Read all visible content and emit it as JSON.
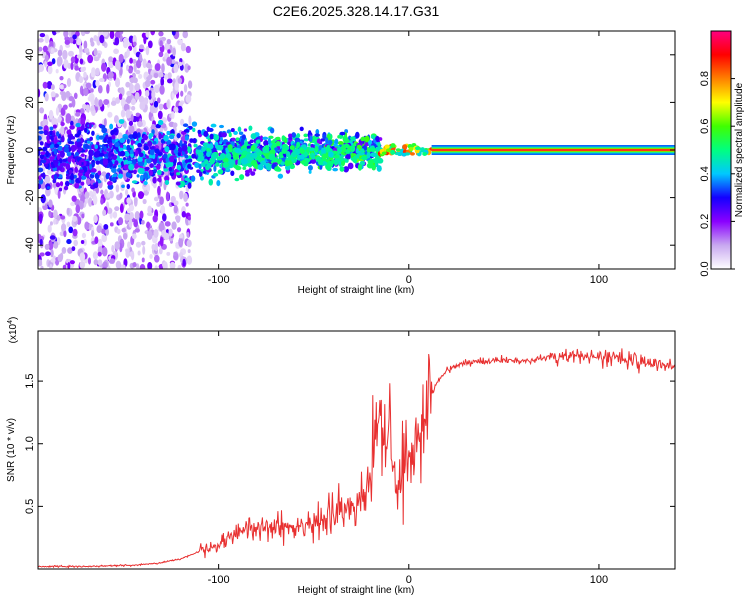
{
  "figure_title": "C2E6.2025.328.14.17.G31",
  "chart_data": [
    {
      "type": "heatmap",
      "title": "C2E6.2025.328.14.17.G31",
      "xlabel": "Height of straight line (km)",
      "ylabel": "Frequency (Hz)",
      "xlim": [
        -195,
        140
      ],
      "ylim": [
        -50,
        50
      ],
      "xticks": [
        -100,
        0,
        100
      ],
      "xtick_labels": [
        "-100",
        "0",
        "100"
      ],
      "yticks": [
        -40,
        -20,
        0,
        20,
        40
      ],
      "ytick_labels": [
        "-40",
        "-20",
        "0",
        "20",
        "40"
      ],
      "colorbar": {
        "label": "Normalized spectral amplitude",
        "range": [
          0,
          1
        ],
        "ticks": [
          0.0,
          0.2,
          0.4,
          0.6,
          0.8
        ],
        "tick_labels": [
          "0.0",
          "0.2",
          "0.4",
          "0.6",
          "0.8"
        ],
        "colors": [
          "#ffffff",
          "#c8a8f0",
          "#8a00ff",
          "#1400ff",
          "#00c8ff",
          "#00ff80",
          "#40ff00",
          "#ffff00",
          "#ff8000",
          "#ff0000",
          "#ff0080"
        ]
      },
      "features": {
        "noise_region_x": [
          -195,
          -115
        ],
        "scatter_band_x": [
          -135,
          -15
        ],
        "transition_x": [
          -15,
          12
        ],
        "steady_tone_x": [
          12,
          140
        ],
        "steady_tone_frequency": 0
      }
    },
    {
      "type": "line",
      "xlabel": "Height of straight line (km)",
      "ylabel": "SNR (10 * v/v)",
      "scale_label": "(x10",
      "scale_exponent": "4",
      "xlim": [
        -195,
        140
      ],
      "ylim": [
        0,
        1.9
      ],
      "xticks": [
        -100,
        0,
        100
      ],
      "xtick_labels": [
        "-100",
        "0",
        "100"
      ],
      "yticks": [
        0.5,
        1.0,
        1.5
      ],
      "ytick_labels": [
        "0.5",
        "1.0",
        "1.5"
      ],
      "line_color": "#e83030",
      "series": [
        {
          "name": "SNR",
          "x": [
            -195,
            -170,
            -145,
            -130,
            -120,
            -110,
            -100,
            -90,
            -80,
            -70,
            -60,
            -50,
            -40,
            -30,
            -25,
            -20,
            -18,
            -15,
            -12,
            -10,
            -8,
            -5,
            -3,
            0,
            3,
            5,
            8,
            10,
            12,
            15,
            20,
            25,
            30,
            40,
            50,
            60,
            70,
            80,
            90,
            100,
            110,
            120,
            130,
            140
          ],
          "values": [
            0.02,
            0.02,
            0.03,
            0.05,
            0.08,
            0.14,
            0.2,
            0.28,
            0.32,
            0.35,
            0.33,
            0.36,
            0.42,
            0.5,
            0.6,
            0.75,
            1.0,
            1.3,
            0.9,
            1.2,
            0.75,
            0.7,
            0.82,
            0.95,
            1.0,
            1.1,
            1.2,
            1.3,
            1.4,
            1.5,
            1.58,
            1.62,
            1.65,
            1.66,
            1.67,
            1.66,
            1.68,
            1.7,
            1.7,
            1.68,
            1.69,
            1.65,
            1.63,
            1.62
          ]
        }
      ]
    }
  ]
}
